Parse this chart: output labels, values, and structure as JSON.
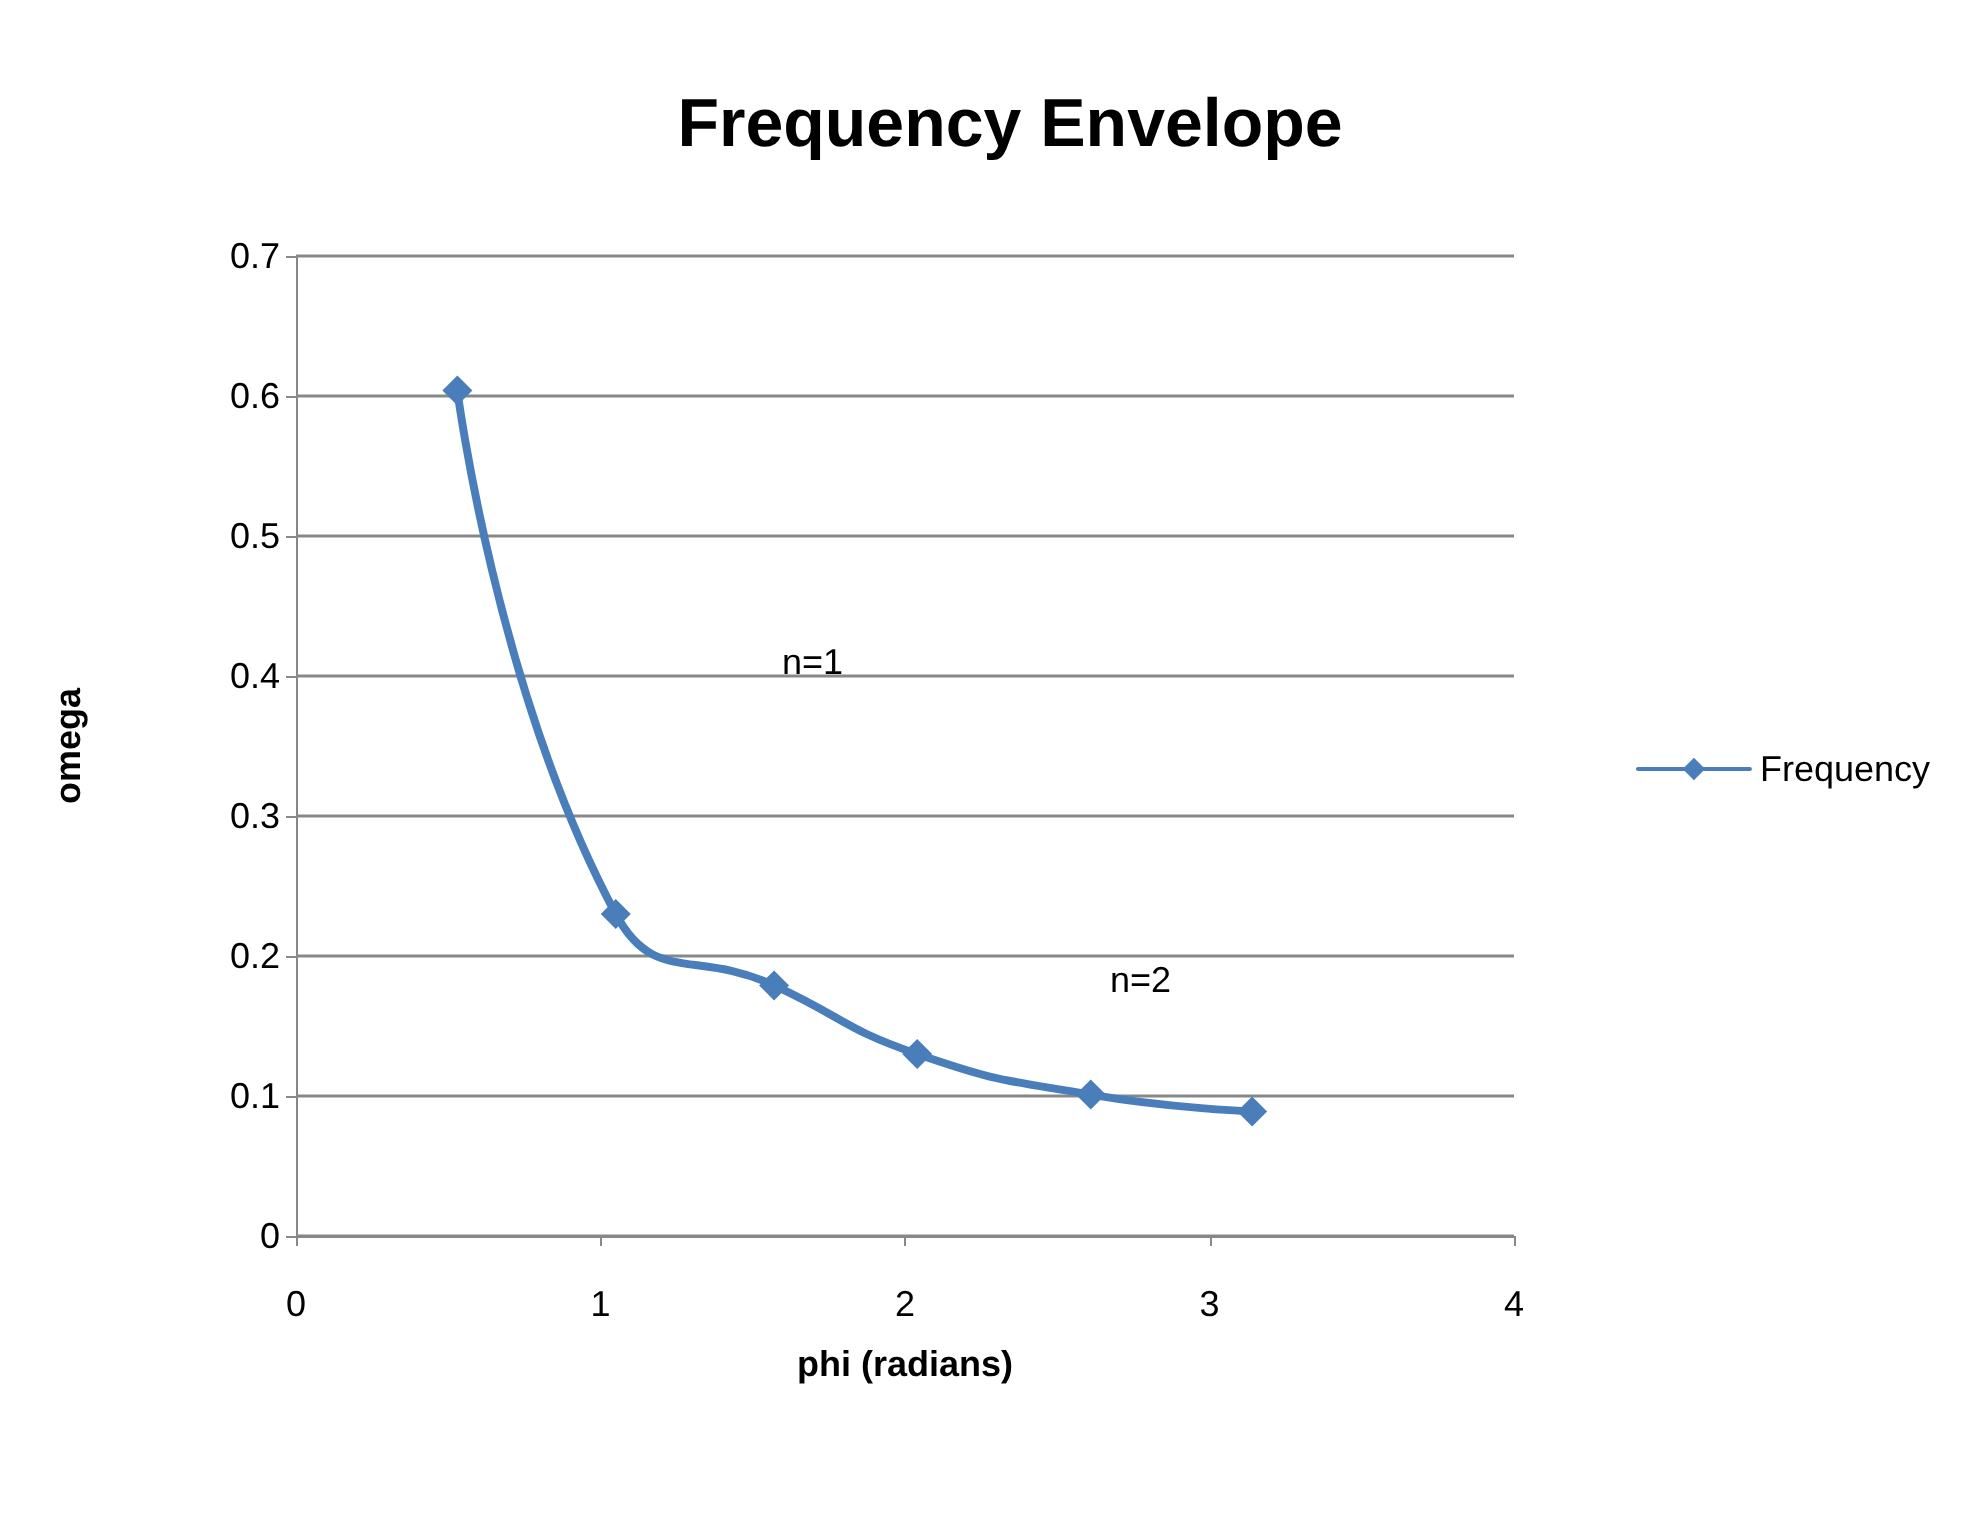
{
  "chart_data": {
    "type": "line",
    "title": "Frequency Envelope",
    "xlabel": "phi (radians)",
    "ylabel": "omega",
    "x": [
      0.53,
      1.05,
      1.57,
      2.04,
      2.61,
      3.14
    ],
    "series": [
      {
        "name": "Frequency",
        "color": "#4a7ebb",
        "values": [
          0.604,
          0.23,
          0.179,
          0.13,
          0.101,
          0.089
        ]
      }
    ],
    "xlim": [
      0,
      4
    ],
    "xticks": [
      0,
      1,
      2,
      3,
      4
    ],
    "ylim": [
      0,
      0.7
    ],
    "yticks": [
      0,
      0.1,
      0.2,
      0.3,
      0.4,
      0.5,
      0.6,
      0.7
    ],
    "annotations": [
      "n=1",
      "n=2"
    ],
    "grid": "y",
    "legend": "right",
    "marker": "diamond",
    "line_style": "solid"
  }
}
